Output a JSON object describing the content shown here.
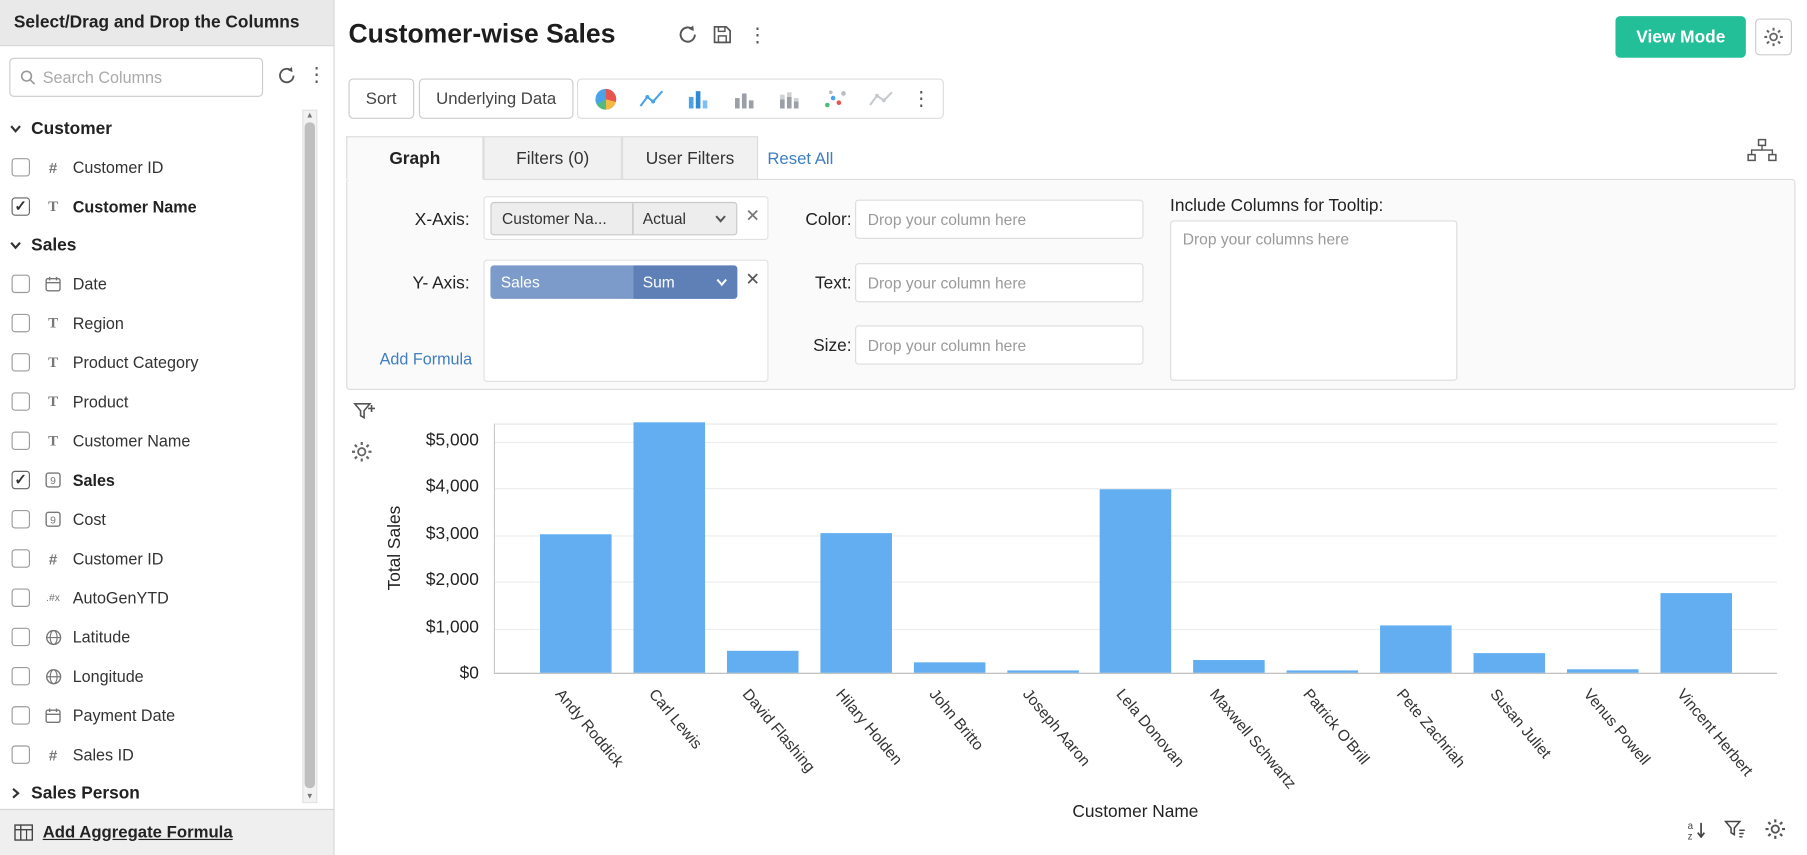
{
  "sidebar": {
    "header": "Select/Drag and Drop the Columns",
    "search_placeholder": "Search Columns",
    "footer_link": "Add Aggregate Formula",
    "groups": [
      {
        "label": "Customer",
        "expanded": true,
        "items": [
          {
            "icon": "hash",
            "label": "Customer ID",
            "checked": false,
            "bold": false
          },
          {
            "icon": "text",
            "label": "Customer Name",
            "checked": true,
            "bold": true
          }
        ]
      },
      {
        "label": "Sales",
        "expanded": true,
        "items": [
          {
            "icon": "calendar",
            "label": "Date",
            "checked": false,
            "bold": false
          },
          {
            "icon": "text",
            "label": "Region",
            "checked": false,
            "bold": false
          },
          {
            "icon": "text",
            "label": "Product Category",
            "checked": false,
            "bold": false
          },
          {
            "icon": "text",
            "label": "Product",
            "checked": false,
            "bold": false
          },
          {
            "icon": "text",
            "label": "Customer Name",
            "checked": false,
            "bold": false
          },
          {
            "icon": "number",
            "label": "Sales",
            "checked": true,
            "bold": true
          },
          {
            "icon": "number",
            "label": "Cost",
            "checked": false,
            "bold": false
          },
          {
            "icon": "hash",
            "label": "Customer ID",
            "checked": false,
            "bold": false
          },
          {
            "icon": "formula",
            "label": "AutoGenYTD",
            "checked": false,
            "bold": false
          },
          {
            "icon": "globe",
            "label": "Latitude",
            "checked": false,
            "bold": false
          },
          {
            "icon": "globe",
            "label": "Longitude",
            "checked": false,
            "bold": false
          },
          {
            "icon": "calendar",
            "label": "Payment Date",
            "checked": false,
            "bold": false
          },
          {
            "icon": "hash",
            "label": "Sales ID",
            "checked": false,
            "bold": false
          }
        ]
      },
      {
        "label": "Sales Person",
        "expanded": false,
        "items": []
      }
    ]
  },
  "header": {
    "title": "Customer-wise Sales",
    "view_mode_label": "View Mode"
  },
  "toolbar": {
    "sort_label": "Sort",
    "underlying_data_label": "Underlying Data"
  },
  "tabs": {
    "graph": "Graph",
    "filters": "Filters (0)",
    "user_filters": "User Filters",
    "reset_all": "Reset All"
  },
  "config": {
    "x_axis_label": "X-Axis:",
    "x_column": "Customer Na...",
    "x_aggregate": "Actual",
    "y_axis_label": "Y- Axis:",
    "y_column": "Sales",
    "y_aggregate": "Sum",
    "add_formula_label": "Add Formula",
    "color_label": "Color:",
    "text_label": "Text:",
    "size_label": "Size:",
    "drop_column_placeholder": "Drop your column here",
    "tooltip_label": "Include Columns for Tooltip:",
    "tooltip_placeholder": "Drop your columns here"
  },
  "chart_data": {
    "type": "bar",
    "categories": [
      "Andy Roddick",
      "Carl Lewis",
      "David Flashing",
      "Hilary Holden",
      "John Britto",
      "Joseph Aaron",
      "Lela Donovan",
      "Maxwell Schwartz",
      "Patrick O'Brill",
      "Pete Zachriah",
      "Susan Juliet",
      "Venus Powell",
      "Vincent Herbert"
    ],
    "values": [
      2970,
      5370,
      470,
      3000,
      220,
      50,
      3935,
      270,
      60,
      1015,
      420,
      75,
      1700
    ],
    "title": "",
    "xlabel": "Customer Name",
    "ylabel": "Total Sales",
    "ylim": [
      0,
      5370
    ],
    "yticks": [
      0,
      1000,
      2000,
      3000,
      4000,
      5000
    ],
    "ytick_labels": [
      "$0",
      "$1,000",
      "$2,000",
      "$3,000",
      "$4,000",
      "$5,000"
    ],
    "bar_color": "#62aef0",
    "grid": true,
    "legend": false
  },
  "colors": {
    "accent_green": "#23bf99",
    "link_blue": "#3f7fc1",
    "bar_blue": "#62aef0",
    "chip_blue": "#7d9bca",
    "chip_blue_dark": "#5e80b6"
  },
  "icons": {
    "kebab": "vertical-ellipsis",
    "refresh": "circular-arrow",
    "save": "floppy-disk",
    "search": "magnifier",
    "gear": "cog",
    "filter": "funnel",
    "filter_add": "funnel-plus",
    "sort_az": "a-z-arrow",
    "hierarchy": "org-chart",
    "chart_types": [
      "pie",
      "line",
      "bar",
      "bar-gray",
      "stacked-bar",
      "scatter",
      "combo"
    ]
  }
}
